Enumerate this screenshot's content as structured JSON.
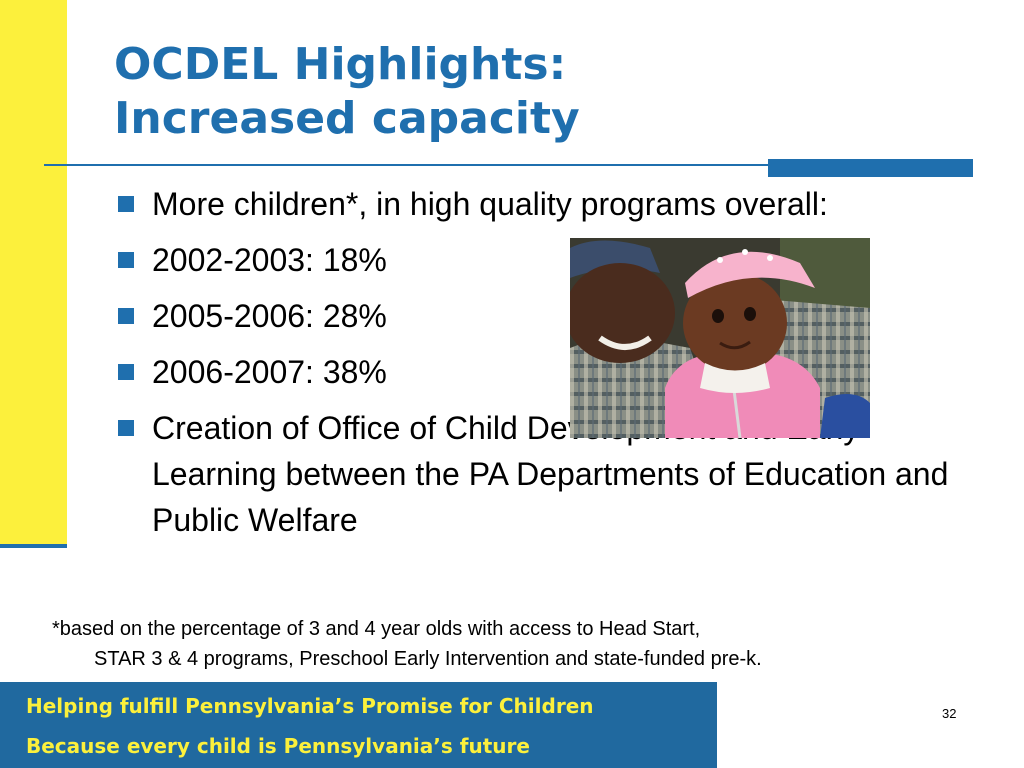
{
  "slide": {
    "title_line1": "OCDEL Highlights:",
    "title_line2": "Increased capacity",
    "bullets": [
      "More children*, in high quality programs overall:",
      "2002-2003: 18%",
      "2005-2006: 28%",
      "2006-2007: 38%",
      "Creation of Office of Child Development and Early Learning between the PA Departments of Education and Public Welfare"
    ],
    "footnote_line1": "*based on the percentage of 3 and 4 year olds with access to Head Start,",
    "footnote_line2": "STAR 3 & 4 programs, Preschool Early Intervention and state-funded pre-k.",
    "footer_line1": "Helping fulfill Pennsylvania’s Promise for Children",
    "footer_line2": "Because every child is Pennsylvania’s future",
    "page_number": "32",
    "photo_icon": "photo-father-and-child"
  },
  "colors": {
    "accent_blue": "#1f6fae",
    "accent_yellow": "#fcf03c",
    "footer_blue": "#20699f"
  }
}
